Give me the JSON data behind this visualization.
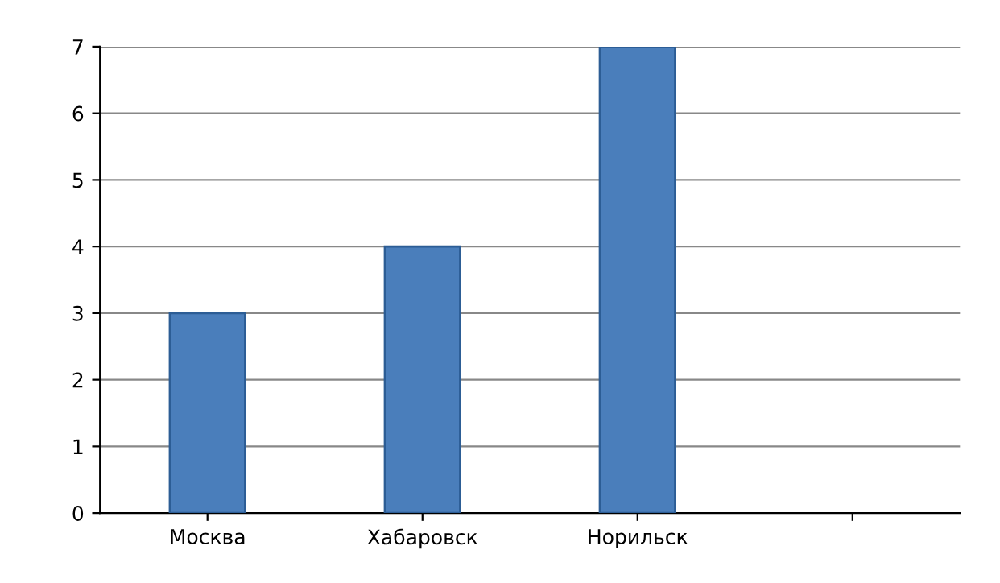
{
  "chart_data": {
    "type": "bar",
    "categories": [
      "Москва",
      "Хабаровск",
      "Норильск",
      null
    ],
    "values": [
      3,
      4,
      7,
      null
    ],
    "color": "#4a7ebb",
    "ylim": [
      0,
      7
    ],
    "yticks": [
      0,
      1,
      2,
      3,
      4,
      5,
      6,
      7
    ],
    "grid": "y"
  }
}
